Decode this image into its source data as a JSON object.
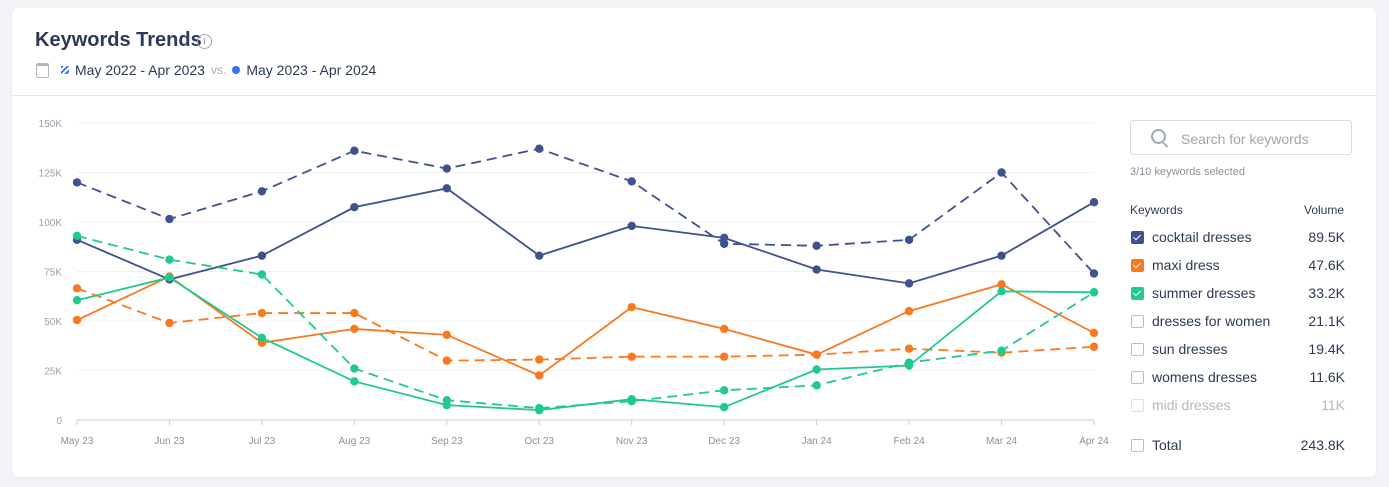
{
  "header": {
    "title": "Keywords Trends",
    "info_icon": "info-icon",
    "calendar_icon": "calendar-icon",
    "period_prev": "May 2022 - Apr 2023",
    "vs": "vs.",
    "period_curr": "May 2023 - Apr 2024"
  },
  "panel": {
    "search_placeholder": "Search for keywords",
    "selected_count": "3/10 keywords selected",
    "col_keywords": "Keywords",
    "col_volume": "Volume",
    "keywords": [
      {
        "label": "cocktail dresses",
        "volume": "89.5K",
        "checked": true,
        "color": "#3f5290"
      },
      {
        "label": "maxi dress",
        "volume": "47.6K",
        "checked": true,
        "color": "#f8791f"
      },
      {
        "label": "summer dresses",
        "volume": "33.2K",
        "checked": true,
        "color": "#20c98f"
      },
      {
        "label": "dresses for women",
        "volume": "21.1K",
        "checked": false
      },
      {
        "label": "sun dresses",
        "volume": "19.4K",
        "checked": false
      },
      {
        "label": "womens dresses",
        "volume": "11.6K",
        "checked": false
      },
      {
        "label": "midi dresses",
        "volume": "11K",
        "checked": false,
        "disabled": true
      }
    ],
    "total": {
      "label": "Total",
      "volume": "243.8K",
      "checked": false
    }
  },
  "chart_data": {
    "type": "line",
    "categories": [
      "May 23",
      "Jun 23",
      "Jul 23",
      "Aug 23",
      "Sep 23",
      "Oct 23",
      "Nov 23",
      "Dec 23",
      "Jan 24",
      "Feb 24",
      "Mar 24",
      "Apr 24"
    ],
    "yticks": [
      "0",
      "25K",
      "50K",
      "75K",
      "100K",
      "125K",
      "150K"
    ],
    "ylim": [
      0,
      150000
    ],
    "grid": true,
    "series": [
      {
        "name": "cocktail dresses",
        "period": "May 2023 - Apr 2024",
        "style": "solid",
        "color": "#3f5290",
        "values": [
          91000,
          71000,
          83000,
          107500,
          117000,
          83000,
          98000,
          92000,
          76000,
          69000,
          83000,
          110000
        ]
      },
      {
        "name": "cocktail dresses",
        "period": "May 2022 - Apr 2023",
        "style": "dashed",
        "color": "#3f5290",
        "values": [
          120000,
          101500,
          115500,
          136000,
          127000,
          137000,
          120500,
          89000,
          88000,
          91000,
          125000,
          74000
        ]
      },
      {
        "name": "maxi dress",
        "period": "May 2023 - Apr 2024",
        "style": "solid",
        "color": "#f8791f",
        "values": [
          50500,
          72500,
          39000,
          46000,
          43000,
          22500,
          57000,
          46000,
          33000,
          55000,
          68500,
          44000
        ]
      },
      {
        "name": "maxi dress",
        "period": "May 2022 - Apr 2023",
        "style": "dashed",
        "color": "#f8791f",
        "values": [
          66500,
          49000,
          54000,
          54000,
          30000,
          30500,
          32000,
          32000,
          33000,
          36000,
          34000,
          37000
        ]
      },
      {
        "name": "summer dresses",
        "period": "May 2023 - Apr 2024",
        "style": "solid",
        "color": "#20c98f",
        "values": [
          60500,
          72000,
          41500,
          19500,
          7500,
          5000,
          10500,
          6500,
          25500,
          27500,
          65000,
          64500
        ]
      },
      {
        "name": "summer dresses",
        "period": "May 2022 - Apr 2023",
        "style": "dashed",
        "color": "#20c98f",
        "values": [
          93000,
          81000,
          73500,
          26000,
          10000,
          6000,
          9500,
          15000,
          17500,
          29000,
          35000,
          64500
        ]
      }
    ]
  }
}
